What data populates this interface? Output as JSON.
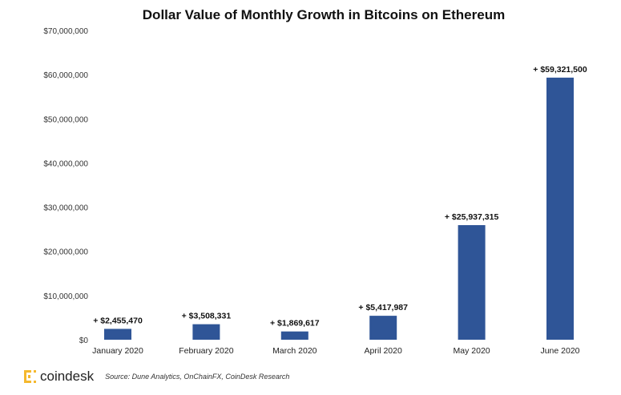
{
  "chart_data": {
    "type": "bar",
    "title": "Dollar Value of Monthly Growth in Bitcoins on Ethereum",
    "categories": [
      "January 2020",
      "February 2020",
      "March 2020",
      "April 2020",
      "May 2020",
      "June 2020"
    ],
    "values": [
      2455470,
      3508331,
      1869617,
      5417987,
      25937315,
      59321500
    ],
    "data_labels": [
      "+ $2,455,470",
      "+ $3,508,331",
      "+ $1,869,617",
      "+ $5,417,987",
      "+ $25,937,315",
      "+ $59,321,500"
    ],
    "yticks": [
      "$0",
      "$10,000,000",
      "$20,000,000",
      "$30,000,000",
      "$40,000,000",
      "$50,000,000",
      "$60,000,000",
      "$70,000,000"
    ],
    "ylim": [
      0,
      70000000
    ],
    "grid": false,
    "bar_color": "#2f5597"
  },
  "footer": {
    "logo": "coindesk",
    "source": "Source: Dune Analytics, OnChainFX, CoinDesk Research",
    "logo_color": "#f5b82e"
  }
}
